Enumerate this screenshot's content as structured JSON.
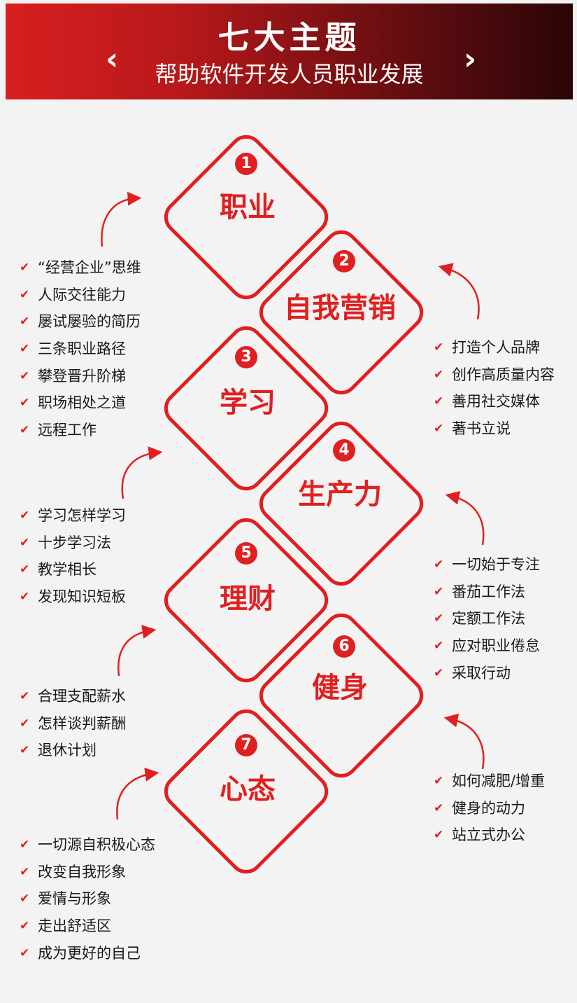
{
  "header": {
    "title": "七大主题",
    "subtitle": "帮助软件开发人员职业发展",
    "prev_glyph": "‹",
    "next_glyph": "›"
  },
  "colors": {
    "accent": "#e02020",
    "banner_start": "#d81f1f",
    "banner_end": "#2a0507",
    "background": "#f3f3f3"
  },
  "icons": {
    "check": "✔"
  },
  "steps": [
    {
      "number": "1",
      "title": "职业",
      "items": [
        "“经营企业”思维",
        "人际交往能力",
        "屡试屡验的简历",
        "三条职业路径",
        "攀登晋升阶梯",
        "职场相处之道",
        "远程工作"
      ]
    },
    {
      "number": "2",
      "title": "自我营销",
      "items": [
        "打造个人品牌",
        "创作高质量内容",
        "善用社交媒体",
        "著书立说"
      ]
    },
    {
      "number": "3",
      "title": "学习",
      "items": [
        "学习怎样学习",
        "十步学习法",
        "教学相长",
        "发现知识短板"
      ]
    },
    {
      "number": "4",
      "title": "生产力",
      "items": [
        "一切始于专注",
        "番茄工作法",
        "定额工作法",
        "应对职业倦怠",
        "采取行动"
      ]
    },
    {
      "number": "5",
      "title": "理财",
      "items": [
        "合理支配薪水",
        "怎样谈判薪酬",
        "退休计划"
      ]
    },
    {
      "number": "6",
      "title": "健身",
      "items": [
        "如何减肥/增重",
        "健身的动力",
        "站立式办公"
      ]
    },
    {
      "number": "7",
      "title": "心态",
      "items": [
        "一切源自积极心态",
        "改变自我形象",
        "爱情与形象",
        "走出舒适区",
        "成为更好的自己"
      ]
    }
  ]
}
